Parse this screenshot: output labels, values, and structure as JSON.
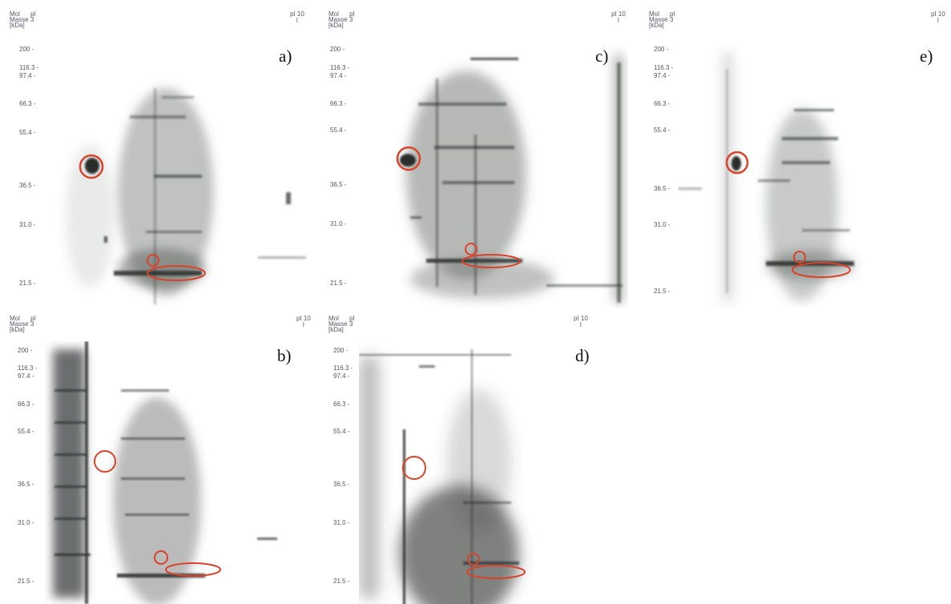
{
  "axis": {
    "mw_header": [
      "Mol",
      "Masse",
      "[kDa]"
    ],
    "pi_low": "pI 3",
    "pi_high": "pI 10",
    "marker_labels": [
      "200 -",
      "116.3 -",
      "97.4 -",
      "66.3 -",
      "55.4 -",
      "36.5 -",
      "31.0 -",
      "21.5 -"
    ]
  },
  "panels": [
    {
      "id": "a",
      "label": "a)"
    },
    {
      "id": "b",
      "label": "b)"
    },
    {
      "id": "c",
      "label": "c)"
    },
    {
      "id": "d",
      "label": "d)"
    },
    {
      "id": "e",
      "label": "e)"
    }
  ],
  "colors": {
    "circle": "#d8432a",
    "spot": "#2a2f2c"
  }
}
